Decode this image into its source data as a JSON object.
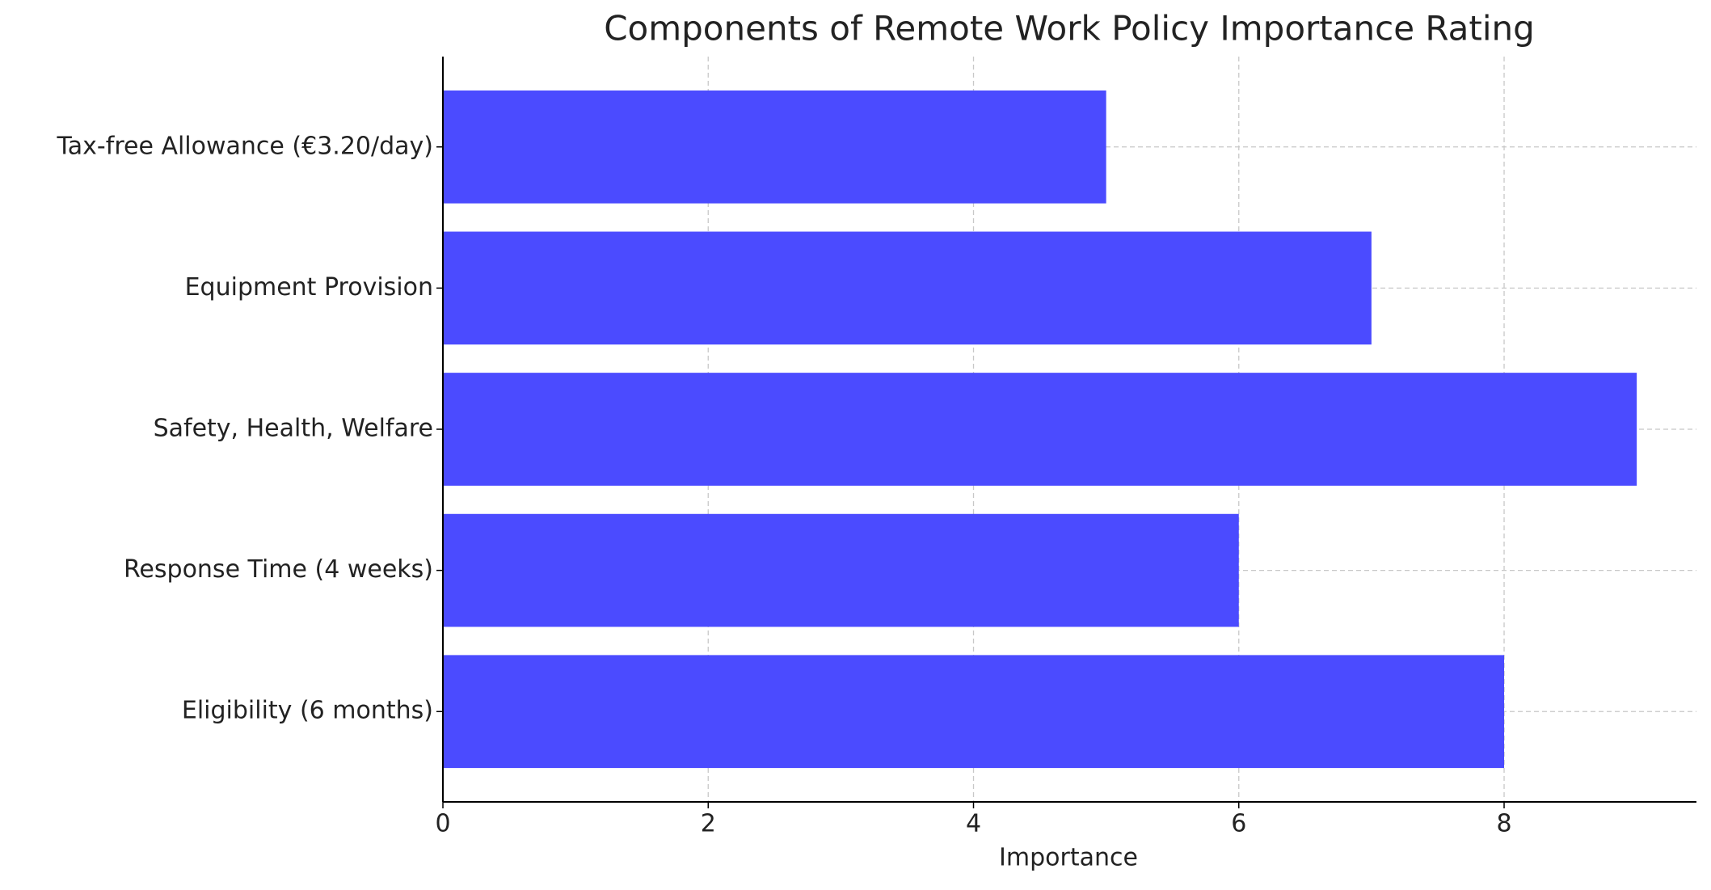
{
  "chart_data": {
    "type": "barh",
    "title": "Components of Remote Work Policy Importance Rating",
    "x_label": "Importance",
    "categories": [
      "Eligibility (6 months)",
      "Response Time (4 weeks)",
      "Safety, Health, Welfare",
      "Equipment Provision",
      "Tax-free Allowance (€3.20/day)"
    ],
    "values": [
      8,
      6,
      9,
      7,
      5
    ],
    "color": "#4b4bff",
    "xlim": [
      0,
      9.45
    ],
    "xticks": [
      0,
      2,
      4,
      6,
      8
    ],
    "grid": true
  }
}
